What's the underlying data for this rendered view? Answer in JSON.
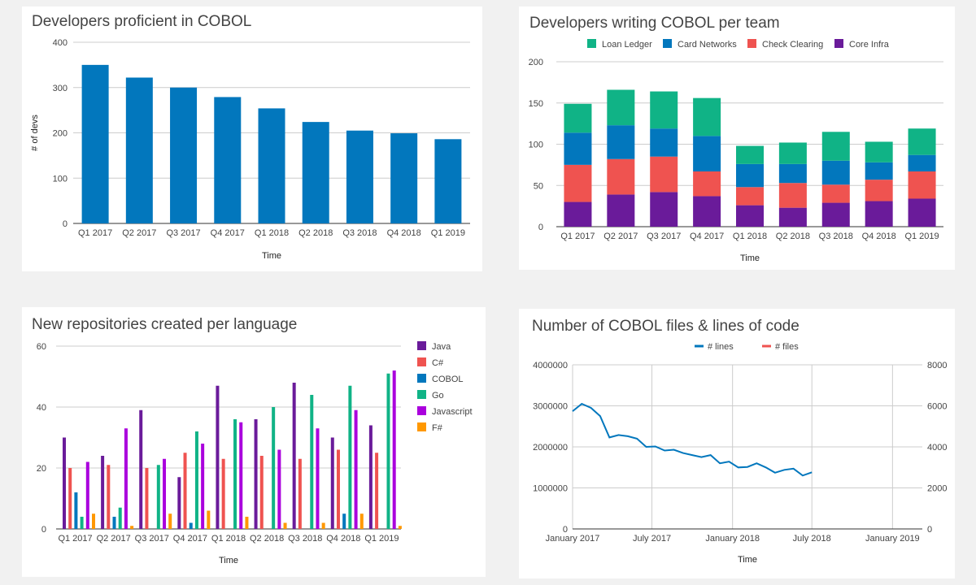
{
  "chart_data": [
    {
      "type": "bar",
      "title": "Developers proficient in COBOL",
      "xlabel": "Time",
      "ylabel": "# of devs",
      "ylim": [
        0,
        400
      ],
      "yticks": [
        "0",
        "100",
        "200",
        "300",
        "400"
      ],
      "categories": [
        "Q1 2017",
        "Q2 2017",
        "Q3 2017",
        "Q4 2017",
        "Q1 2018",
        "Q2 2018",
        "Q3 2018",
        "Q4 2018",
        "Q1 2019"
      ],
      "values": [
        350,
        322,
        300,
        279,
        254,
        224,
        205,
        199,
        186
      ],
      "color": "#0277bd",
      "grid": true
    },
    {
      "type": "bar",
      "stacked": true,
      "title": "Developers writing COBOL per team",
      "xlabel": "Time",
      "ylim": [
        0,
        200
      ],
      "yticks": [
        "0",
        "50",
        "100",
        "150",
        "200"
      ],
      "legend_position": "top",
      "categories": [
        "Q1 2017",
        "Q2 2017",
        "Q3 2017",
        "Q4 2017",
        "Q1 2018",
        "Q2 2018",
        "Q3 2018",
        "Q4 2018",
        "Q1 2019"
      ],
      "series": [
        {
          "name": "Core Infra",
          "color": "#6a1b9a",
          "values": [
            30,
            39,
            42,
            37,
            26,
            23,
            29,
            31,
            34
          ]
        },
        {
          "name": "Check Clearing",
          "color": "#ef5350",
          "values": [
            45,
            43,
            43,
            30,
            22,
            30,
            22,
            26,
            33
          ]
        },
        {
          "name": "Card Networks",
          "color": "#0277bd",
          "values": [
            39,
            41,
            34,
            43,
            28,
            23,
            29,
            21,
            20
          ]
        },
        {
          "name": "Loan Ledger",
          "color": "#10b386",
          "values": [
            35,
            43,
            45,
            46,
            22,
            26,
            35,
            25,
            32
          ]
        }
      ],
      "legend_order": [
        "Loan Ledger",
        "Card Networks",
        "Check Clearing",
        "Core Infra"
      ],
      "grid": true
    },
    {
      "type": "bar",
      "title": "New repositories created per language",
      "xlabel": "Time",
      "ylim": [
        0,
        60
      ],
      "yticks": [
        "0",
        "20",
        "40",
        "60"
      ],
      "legend_position": "right",
      "categories": [
        "Q1 2017",
        "Q2 2017",
        "Q3 2017",
        "Q4 2017",
        "Q1 2018",
        "Q2 2018",
        "Q3 2018",
        "Q4 2018",
        "Q1 2019"
      ],
      "series": [
        {
          "name": "Java",
          "color": "#6a1b9a",
          "values": [
            30,
            24,
            39,
            17,
            47,
            36,
            48,
            30,
            34
          ]
        },
        {
          "name": "C#",
          "color": "#ef5350",
          "values": [
            20,
            21,
            20,
            25,
            23,
            24,
            23,
            26,
            25
          ]
        },
        {
          "name": "COBOL",
          "color": "#0277bd",
          "values": [
            12,
            4,
            0,
            2,
            0,
            0,
            0,
            5,
            0
          ]
        },
        {
          "name": "Go",
          "color": "#10b386",
          "values": [
            4,
            7,
            21,
            32,
            36,
            40,
            44,
            47,
            51
          ]
        },
        {
          "name": "Javascript",
          "color": "#aa00dd",
          "values": [
            22,
            33,
            23,
            28,
            35,
            26,
            33,
            39,
            52
          ]
        },
        {
          "name": "F#",
          "color": "#ff9800",
          "values": [
            5,
            1,
            5,
            6,
            4,
            2,
            2,
            5,
            1
          ]
        }
      ],
      "grid": true
    },
    {
      "type": "line",
      "title": "Number of COBOL files & lines of code",
      "xlabel": "Time",
      "legend_position": "top",
      "x_ticks": [
        "January 2017",
        "July 2017",
        "January 2018",
        "July 2018",
        "January 2019"
      ],
      "y_left": {
        "ylim": [
          0,
          4000000
        ],
        "ticks": [
          "0",
          "1000000",
          "2000000",
          "3000000",
          "4000000"
        ]
      },
      "y_right": {
        "ylim": [
          0,
          8000
        ],
        "ticks": [
          "0",
          "2000",
          "4000",
          "6000",
          "8000"
        ]
      },
      "series": [
        {
          "name": "# lines",
          "color": "#0277bd",
          "axis": "left",
          "x": [
            "2017-01-01",
            "2017-01-22",
            "2017-02-12",
            "2017-03-05",
            "2017-03-26",
            "2017-04-16",
            "2017-05-07",
            "2017-05-28",
            "2017-06-18",
            "2017-07-09",
            "2017-07-30",
            "2017-08-20",
            "2017-09-10",
            "2017-10-01",
            "2017-10-22",
            "2017-11-12",
            "2017-12-03",
            "2017-12-24",
            "2018-01-14",
            "2018-02-04",
            "2018-02-25",
            "2018-03-18",
            "2018-04-08",
            "2018-04-29",
            "2018-05-20",
            "2018-06-10",
            "2018-07-01",
            "2018-07-22",
            "2018-08-12",
            "2018-09-02",
            "2018-09-23",
            "2018-10-14",
            "2018-11-04",
            "2018-11-25",
            "2018-12-16",
            "2019-01-06",
            "2019-01-27",
            "2019-02-17",
            "2019-03-10"
          ],
          "y": [
            2870000,
            3050000,
            2950000,
            2750000,
            2230000,
            2290000,
            2260000,
            2200000,
            2000000,
            2010000,
            1910000,
            1930000,
            1850000,
            1800000,
            1750000,
            1800000,
            1600000,
            1640000,
            1500000,
            1510000,
            1600000,
            1500000,
            1370000,
            1440000,
            1470000,
            1300000,
            1380000,
            null,
            null,
            null,
            null,
            null,
            null,
            null,
            null,
            null,
            null,
            null,
            null
          ]
        },
        {
          "name": "# files",
          "color": "#ef5350",
          "axis": "right",
          "x": [],
          "y": []
        }
      ],
      "grid": true
    }
  ]
}
